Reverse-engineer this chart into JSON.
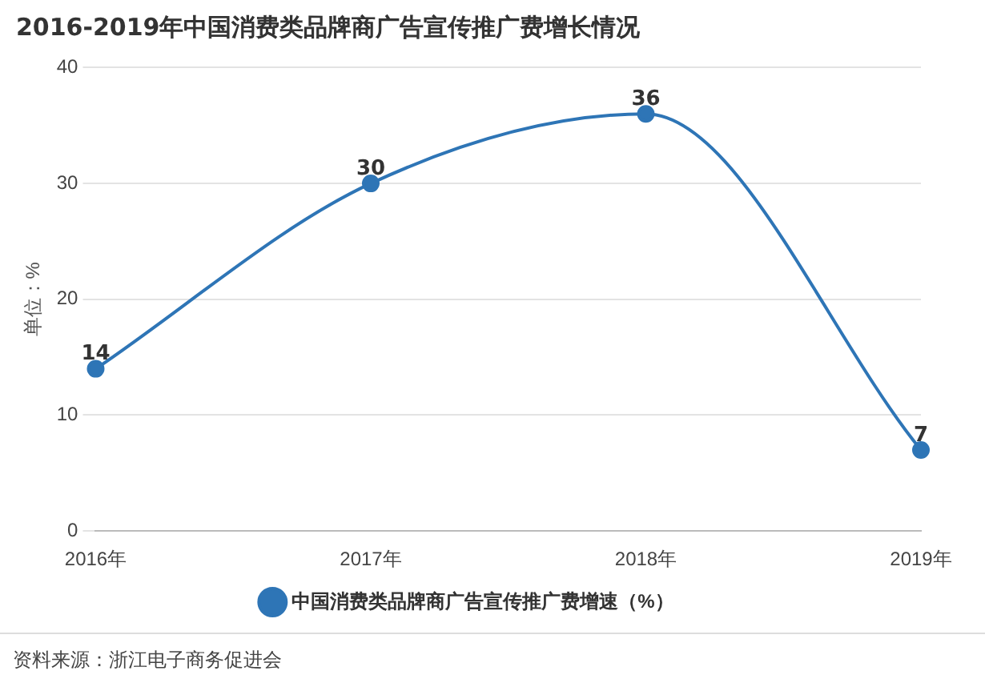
{
  "chart_data": {
    "type": "line",
    "title": "2016-2019年中国消费类品牌商广告宣传推广费增长情况",
    "ylabel": "单位：%",
    "categories": [
      "2016年",
      "2017年",
      "2018年",
      "2019年"
    ],
    "series": [
      {
        "name": "中国消费类品牌商广告宣传推广费增速（%）",
        "color": "#2e75b6",
        "values": [
          14,
          30,
          36,
          7
        ]
      }
    ],
    "ylim": [
      0,
      40
    ],
    "yticks": [
      0,
      10,
      20,
      30,
      40
    ],
    "grid": "y",
    "legend": "bottom",
    "marker": "circle",
    "line_style": "solid",
    "data_labels": true,
    "annotations": [
      "资料来源：浙江电子商务促进会"
    ]
  }
}
